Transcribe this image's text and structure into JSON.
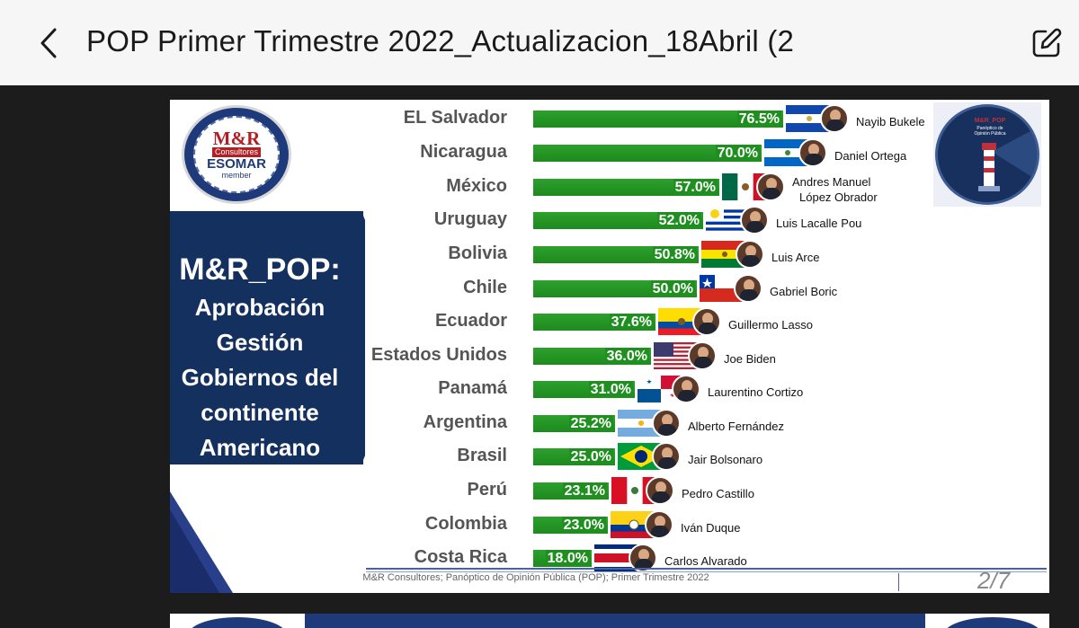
{
  "appbar": {
    "title": "POP Primer Trimestre 2022_Actualizacion_18Abril (2",
    "back_icon": "chevron-left-icon",
    "edit_icon": "edit-icon"
  },
  "slide": {
    "logo_left": {
      "brand": "M&R",
      "sub": "Consultores",
      "org": "ESOMAR",
      "member": "member"
    },
    "logo_right": {
      "text": "M&R_POP Panóptico de Opinión Pública"
    },
    "panel": {
      "heading": "M&R_POP:",
      "lines": [
        "Aprobación",
        "Gestión",
        "Gobiernos del",
        "continente",
        "Americano"
      ]
    },
    "colors": {
      "bar": "#1f8f1f",
      "panel": "#14305e"
    },
    "rows": [
      {
        "country": "EL Salvador",
        "value": "76.5%",
        "leader": "Nayib Bukele",
        "flag": "el-salvador"
      },
      {
        "country": "Nicaragua",
        "value": "70.0%",
        "leader": "Daniel Ortega",
        "flag": "nicaragua"
      },
      {
        "country": "México",
        "value": "57.0%",
        "leader": "Andres Manuel",
        "leader2": "López Obrador",
        "flag": "mexico"
      },
      {
        "country": "Uruguay",
        "value": "52.0%",
        "leader": "Luis Lacalle Pou",
        "flag": "uruguay"
      },
      {
        "country": "Bolivia",
        "value": "50.8%",
        "leader": "Luis Arce",
        "flag": "bolivia"
      },
      {
        "country": "Chile",
        "value": "50.0%",
        "leader": "Gabriel Boric",
        "flag": "chile"
      },
      {
        "country": "Ecuador",
        "value": "37.6%",
        "leader": "Guillermo Lasso",
        "flag": "ecuador"
      },
      {
        "country": "Estados Unidos",
        "value": "36.0%",
        "leader": "Joe Biden",
        "flag": "usa"
      },
      {
        "country": "Panamá",
        "value": "31.0%",
        "leader": "Laurentino Cortizo",
        "flag": "panama"
      },
      {
        "country": "Argentina",
        "value": "25.2%",
        "leader": "Alberto Fernández",
        "flag": "argentina"
      },
      {
        "country": "Brasil",
        "value": "25.0%",
        "leader": "Jair Bolsonaro",
        "flag": "brasil"
      },
      {
        "country": "Perú",
        "value": "23.1%",
        "leader": "Pedro Castillo",
        "flag": "peru"
      },
      {
        "country": "Colombia",
        "value": "23.0%",
        "leader": "Iván Duque",
        "flag": "colombia"
      },
      {
        "country": "Costa Rica",
        "value": "18.0%",
        "leader": "Carlos Alvarado",
        "flag": "costa-rica"
      }
    ],
    "footer": "M&R Consultores; Panóptico de Opinión Pública (POP); Primer Trimestre 2022",
    "page": "2/7"
  },
  "chart_data": {
    "type": "bar",
    "orientation": "horizontal",
    "categories": [
      "EL Salvador",
      "Nicaragua",
      "México",
      "Uruguay",
      "Bolivia",
      "Chile",
      "Ecuador",
      "Estados Unidos",
      "Panamá",
      "Argentina",
      "Brasil",
      "Perú",
      "Colombia",
      "Costa Rica"
    ],
    "values": [
      76.5,
      70.0,
      57.0,
      52.0,
      50.8,
      50.0,
      37.6,
      36.0,
      31.0,
      25.2,
      25.0,
      23.1,
      23.0,
      18.0
    ],
    "data_labels": [
      "76.5%",
      "70.0%",
      "57.0%",
      "52.0%",
      "50.8%",
      "50.0%",
      "37.6%",
      "36.0%",
      "31.0%",
      "25.2%",
      "25.0%",
      "23.1%",
      "23.0%",
      "18.0%"
    ],
    "title": "",
    "xlabel": "",
    "ylabel": ""
  }
}
